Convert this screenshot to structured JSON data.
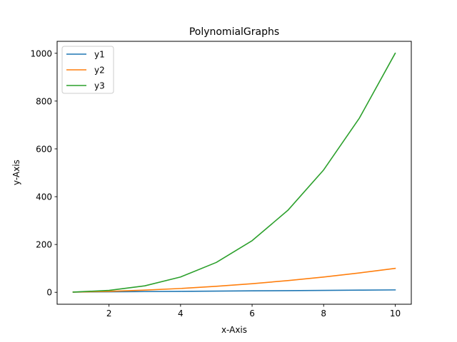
{
  "chart_data": {
    "type": "line",
    "title": "PolynomialGraphs",
    "xlabel": "x-Axis",
    "ylabel": "y-Axis",
    "x": [
      1,
      2,
      3,
      4,
      5,
      6,
      7,
      8,
      9,
      10
    ],
    "series": [
      {
        "name": "y1",
        "color": "#1f77b4",
        "values": [
          1,
          2,
          3,
          4,
          5,
          6,
          7,
          8,
          9,
          10
        ]
      },
      {
        "name": "y2",
        "color": "#ff7f0e",
        "values": [
          1,
          4,
          9,
          16,
          25,
          36,
          49,
          64,
          81,
          100
        ]
      },
      {
        "name": "y3",
        "color": "#2ca02c",
        "values": [
          1,
          8,
          27,
          64,
          125,
          216,
          343,
          512,
          729,
          1000
        ]
      }
    ],
    "xlim": [
      0.55,
      10.45
    ],
    "ylim": [
      -49.95,
      1049.95
    ],
    "xticks": [
      2,
      4,
      6,
      8,
      10
    ],
    "yticks": [
      0,
      200,
      400,
      600,
      800,
      1000
    ],
    "grid": false,
    "legend_position": "top-left"
  }
}
